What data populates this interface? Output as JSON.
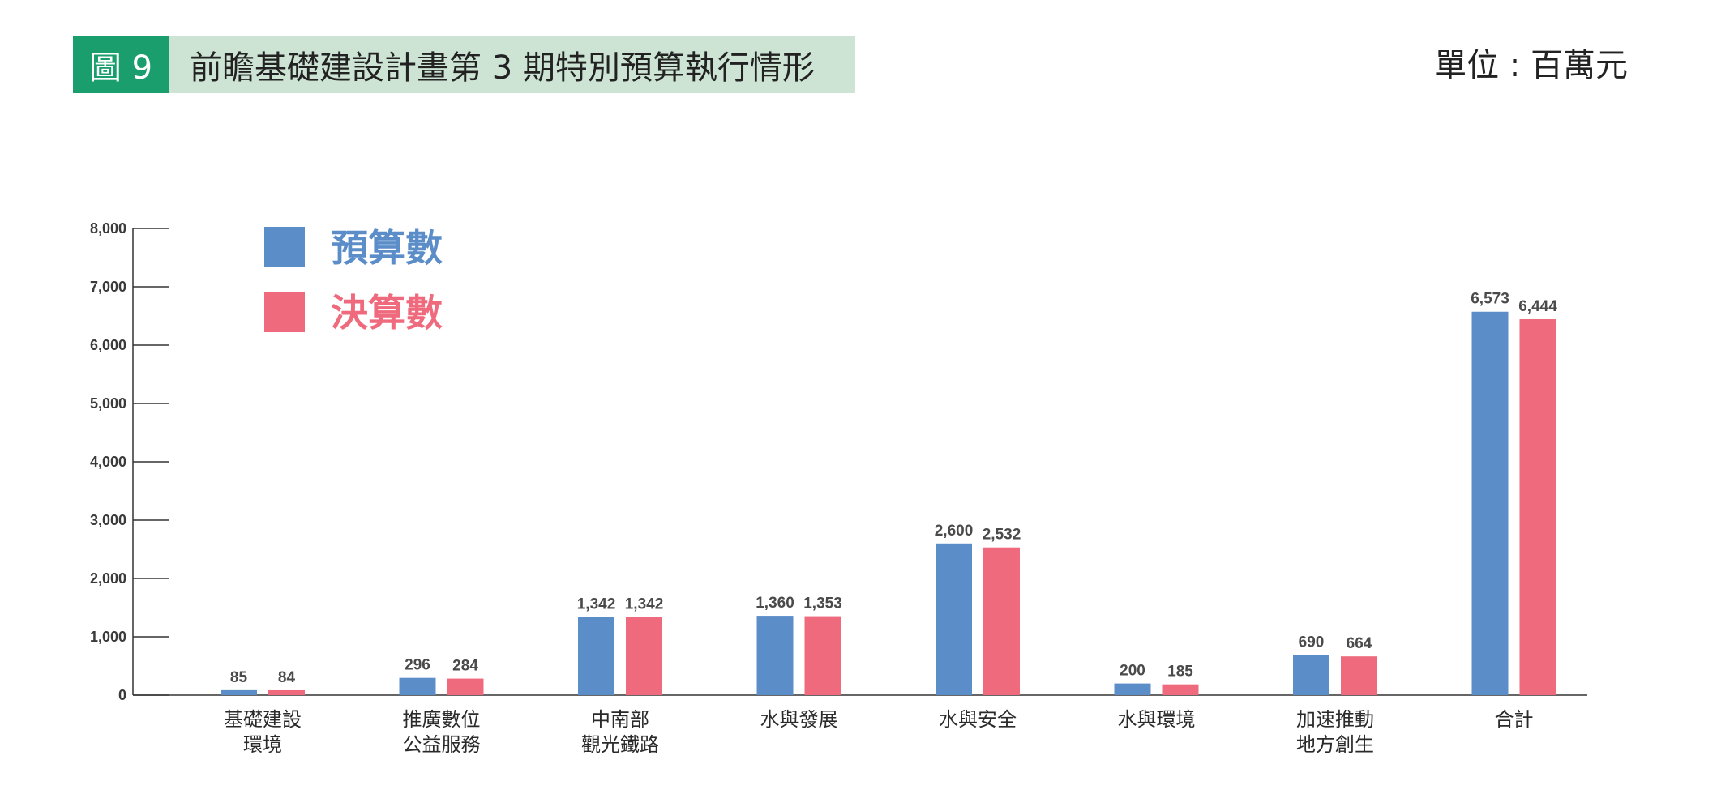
{
  "header": {
    "figure_number": "圖 9",
    "title": "前瞻基礎建設計畫第 3 期特別預算執行情形",
    "unit": "單位 : 百萬元"
  },
  "chart_data": {
    "type": "bar",
    "categories": [
      [
        "基礎建設",
        "環境"
      ],
      [
        "推廣數位",
        "公益服務"
      ],
      [
        "中南部",
        "觀光鐵路"
      ],
      [
        "水與發展"
      ],
      [
        "水與安全"
      ],
      [
        "水與環境"
      ],
      [
        "加速推動",
        "地方創生"
      ],
      [
        "合計"
      ]
    ],
    "series": [
      {
        "name": "預算數",
        "color": "#5b8dc9",
        "values": [
          85,
          296,
          1342,
          1360,
          2600,
          200,
          690,
          6573
        ],
        "labels": [
          "85",
          "296",
          "1,342",
          "1,360",
          "2,600",
          "200",
          "690",
          "6,573"
        ]
      },
      {
        "name": "決算數",
        "color": "#ee6a7c",
        "values": [
          84,
          284,
          1342,
          1353,
          2532,
          185,
          664,
          6444
        ],
        "labels": [
          "84",
          "284",
          "1,342",
          "1,353",
          "2,532",
          "185",
          "664",
          "6,444"
        ]
      }
    ],
    "ylim": [
      0,
      8000
    ],
    "yticks": [
      0,
      1000,
      2000,
      3000,
      4000,
      5000,
      6000,
      7000,
      8000
    ],
    "ytick_labels": [
      "0",
      "1,000",
      "2,000",
      "3,000",
      "4,000",
      "5,000",
      "6,000",
      "7,000",
      "8,000"
    ],
    "legend_position": "top-left",
    "grid": false
  }
}
